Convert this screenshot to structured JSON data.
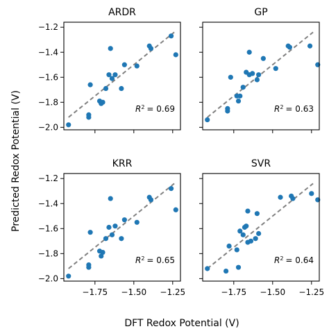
{
  "chart_data": {
    "type": "scatter",
    "xlabel": "DFT Redox Potential (V)",
    "ylabel": "Predicted Redox Potential (V)",
    "xlim": [
      -1.95,
      -1.2
    ],
    "ylim": [
      -2.02,
      -1.16
    ],
    "xticks": [
      -1.75,
      -1.5,
      -1.25
    ],
    "xtick_labels": [
      "−1.75",
      "−1.50",
      "−1.25"
    ],
    "yticks": [
      -2.0,
      -1.8,
      -1.6,
      -1.4,
      -1.2
    ],
    "ytick_labels": [
      "−2.0",
      "−1.8",
      "−1.6",
      "−1.4",
      "−1.2"
    ],
    "reference_line": "y = x",
    "grid": false,
    "point_color": "#1f77b4",
    "line_color": "#808080",
    "panels": [
      {
        "title": "ARDR",
        "r2_label": "R",
        "r2_value": "= 0.69",
        "points": [
          {
            "x": -1.92,
            "y": -1.98
          },
          {
            "x": -1.79,
            "y": -1.92
          },
          {
            "x": -1.79,
            "y": -1.9
          },
          {
            "x": -1.78,
            "y": -1.66
          },
          {
            "x": -1.72,
            "y": -1.79
          },
          {
            "x": -1.71,
            "y": -1.81
          },
          {
            "x": -1.7,
            "y": -1.8
          },
          {
            "x": -1.68,
            "y": -1.69
          },
          {
            "x": -1.66,
            "y": -1.58
          },
          {
            "x": -1.65,
            "y": -1.37
          },
          {
            "x": -1.64,
            "y": -1.61
          },
          {
            "x": -1.62,
            "y": -1.58
          },
          {
            "x": -1.58,
            "y": -1.69
          },
          {
            "x": -1.56,
            "y": -1.5
          },
          {
            "x": -1.48,
            "y": -1.51
          },
          {
            "x": -1.4,
            "y": -1.35
          },
          {
            "x": -1.39,
            "y": -1.37
          },
          {
            "x": -1.26,
            "y": -1.27
          },
          {
            "x": -1.23,
            "y": -1.42
          }
        ]
      },
      {
        "title": "GP",
        "r2_label": "R",
        "r2_value": "= 0.63",
        "points": [
          {
            "x": -1.92,
            "y": -1.94
          },
          {
            "x": -1.79,
            "y": -1.87
          },
          {
            "x": -1.79,
            "y": -1.85
          },
          {
            "x": -1.77,
            "y": -1.6
          },
          {
            "x": -1.73,
            "y": -1.75
          },
          {
            "x": -1.72,
            "y": -1.79
          },
          {
            "x": -1.71,
            "y": -1.75
          },
          {
            "x": -1.69,
            "y": -1.68
          },
          {
            "x": -1.67,
            "y": -1.56
          },
          {
            "x": -1.65,
            "y": -1.4
          },
          {
            "x": -1.65,
            "y": -1.58
          },
          {
            "x": -1.63,
            "y": -1.57
          },
          {
            "x": -1.6,
            "y": -1.62
          },
          {
            "x": -1.59,
            "y": -1.58
          },
          {
            "x": -1.56,
            "y": -1.45
          },
          {
            "x": -1.48,
            "y": -1.53
          },
          {
            "x": -1.4,
            "y": -1.35
          },
          {
            "x": -1.39,
            "y": -1.36
          },
          {
            "x": -1.26,
            "y": -1.35
          },
          {
            "x": -1.21,
            "y": -1.5
          }
        ]
      },
      {
        "title": "KRR",
        "r2_label": "R",
        "r2_value": "= 0.65",
        "points": [
          {
            "x": -1.92,
            "y": -1.98
          },
          {
            "x": -1.79,
            "y": -1.91
          },
          {
            "x": -1.79,
            "y": -1.89
          },
          {
            "x": -1.78,
            "y": -1.63
          },
          {
            "x": -1.72,
            "y": -1.78
          },
          {
            "x": -1.71,
            "y": -1.82
          },
          {
            "x": -1.7,
            "y": -1.79
          },
          {
            "x": -1.68,
            "y": -1.68
          },
          {
            "x": -1.66,
            "y": -1.59
          },
          {
            "x": -1.65,
            "y": -1.36
          },
          {
            "x": -1.64,
            "y": -1.65
          },
          {
            "x": -1.62,
            "y": -1.58
          },
          {
            "x": -1.58,
            "y": -1.68
          },
          {
            "x": -1.56,
            "y": -1.53
          },
          {
            "x": -1.48,
            "y": -1.55
          },
          {
            "x": -1.4,
            "y": -1.35
          },
          {
            "x": -1.39,
            "y": -1.37
          },
          {
            "x": -1.26,
            "y": -1.28
          },
          {
            "x": -1.23,
            "y": -1.45
          }
        ]
      },
      {
        "title": "SVR",
        "r2_label": "R",
        "r2_value": "= 0.64",
        "points": [
          {
            "x": -1.92,
            "y": -1.92
          },
          {
            "x": -1.8,
            "y": -1.94
          },
          {
            "x": -1.78,
            "y": -1.74
          },
          {
            "x": -1.73,
            "y": -1.77
          },
          {
            "x": -1.72,
            "y": -1.91
          },
          {
            "x": -1.71,
            "y": -1.62
          },
          {
            "x": -1.69,
            "y": -1.65
          },
          {
            "x": -1.68,
            "y": -1.59
          },
          {
            "x": -1.67,
            "y": -1.58
          },
          {
            "x": -1.66,
            "y": -1.46
          },
          {
            "x": -1.66,
            "y": -1.71
          },
          {
            "x": -1.64,
            "y": -1.7
          },
          {
            "x": -1.61,
            "y": -1.68
          },
          {
            "x": -1.6,
            "y": -1.48
          },
          {
            "x": -1.59,
            "y": -1.64
          },
          {
            "x": -1.45,
            "y": -1.35
          },
          {
            "x": -1.38,
            "y": -1.34
          },
          {
            "x": -1.37,
            "y": -1.36
          },
          {
            "x": -1.25,
            "y": -1.32
          },
          {
            "x": -1.21,
            "y": -1.37
          }
        ]
      }
    ]
  }
}
